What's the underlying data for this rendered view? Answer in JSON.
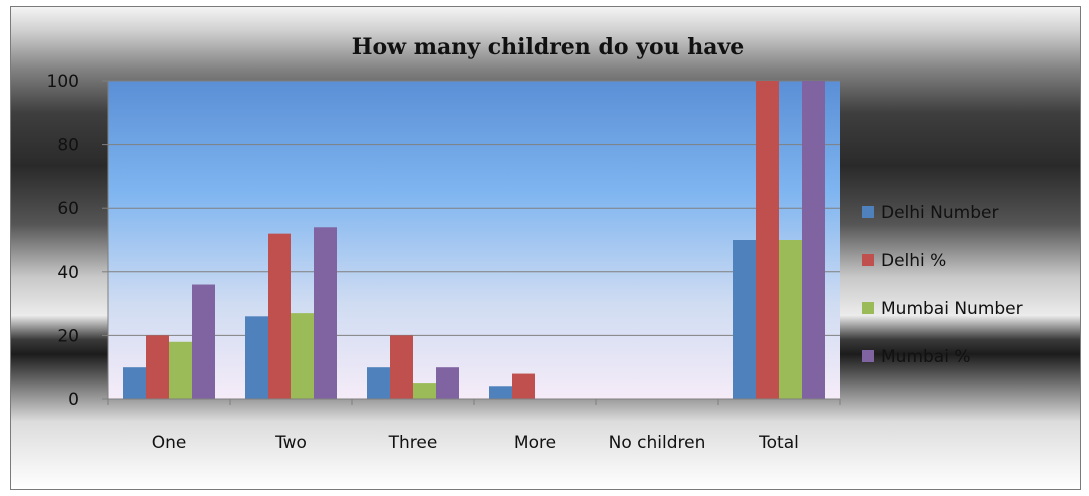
{
  "chart_data": {
    "type": "bar",
    "title": "How many children do you have",
    "categories": [
      "One",
      "Two",
      "Three",
      "More",
      "No children",
      "Total"
    ],
    "series": [
      {
        "name": "Delhi Number",
        "color": "#4f81bd",
        "values": [
          10,
          26,
          10,
          4,
          0,
          50
        ]
      },
      {
        "name": "Delhi %",
        "color": "#c0504d",
        "values": [
          20,
          52,
          20,
          8,
          0,
          100
        ]
      },
      {
        "name": "Mumbai Number",
        "color": "#9bbb59",
        "values": [
          18,
          27,
          5,
          0,
          0,
          50
        ]
      },
      {
        "name": "Mumbai %",
        "color": "#8064a2",
        "values": [
          36,
          54,
          10,
          0,
          0,
          100
        ]
      }
    ],
    "yticks": [
      "0",
      "20",
      "40",
      "60",
      "80",
      "100"
    ],
    "ylim": [
      0,
      100
    ],
    "xlabel": "",
    "ylabel": "",
    "grid": true,
    "legend_position": "right"
  }
}
